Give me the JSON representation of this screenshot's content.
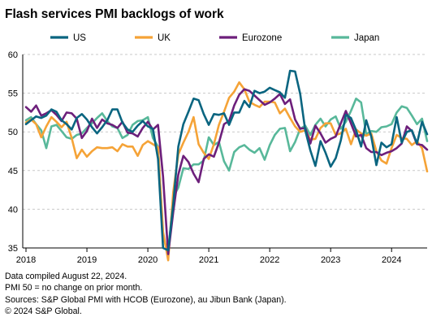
{
  "title": "Flash services PMI backlogs of work",
  "footnotes": [
    "Data compiled August 22, 2024.",
    "PMI 50 = no change on prior month.",
    "Sources: S&P Global PMI with HCOB (Eurozone),  au Jibun Bank (Japan).",
    "© 2024 S&P Global."
  ],
  "chart_data": {
    "type": "line",
    "title": "Flash services PMI backlogs of work",
    "xlabel": "",
    "ylabel": "",
    "x_start": "2018-01",
    "x_end": "2024-08",
    "frequency": "monthly",
    "xticks": [
      "2018",
      "2019",
      "2020",
      "2021",
      "2022",
      "2023",
      "2024"
    ],
    "ylim": [
      35,
      60
    ],
    "yticks": [
      35,
      40,
      45,
      50,
      55,
      60
    ],
    "grid": "horizontal dashed",
    "legend_position": "top",
    "series": [
      {
        "name": "US",
        "color": "#0a6580",
        "values": [
          51.0,
          51.5,
          52.0,
          51.8,
          52.1,
          52.9,
          52.6,
          51.5,
          51.0,
          50.3,
          51.8,
          52.3,
          51.6,
          50.6,
          49.8,
          50.6,
          51.5,
          52.9,
          52.9,
          51.2,
          50.3,
          50.0,
          50.8,
          51.4,
          50.7,
          50.4,
          46.5,
          35.0,
          34.7,
          40.6,
          48.1,
          51.0,
          52.6,
          54.3,
          54.1,
          52.3,
          50.9,
          52.3,
          52.2,
          52.4,
          50.9,
          52.5,
          52.5,
          54.0,
          53.2,
          55.3,
          55.0,
          55.2,
          55.7,
          55.4,
          55.1,
          54.4,
          57.9,
          57.8,
          54.9,
          50.2,
          47.6,
          45.6,
          48.8,
          47.3,
          45.5,
          46.6,
          48.9,
          52.2,
          51.8,
          50.2,
          48.1,
          51.5,
          49.4,
          45.7,
          48.6,
          48.0,
          48.4,
          51.9,
          48.6,
          50.0,
          50.2,
          48.5,
          51.3,
          49.7
        ],
        "label_anchor_index": 5
      },
      {
        "name": "UK",
        "color": "#f5a337",
        "values": [
          51.2,
          51.6,
          51.0,
          49.3,
          50.7,
          51.9,
          51.3,
          50.6,
          51.3,
          49.2,
          46.6,
          47.7,
          46.8,
          47.5,
          48.0,
          47.9,
          47.9,
          48.0,
          47.5,
          48.4,
          48.1,
          48.1,
          46.9,
          48.3,
          48.8,
          48.4,
          48.0,
          37.1,
          33.4,
          42.2,
          47.1,
          48.6,
          50.0,
          51.9,
          48.4,
          47.3,
          46.5,
          48.4,
          50.9,
          52.6,
          54.4,
          55.2,
          56.4,
          55.5,
          53.9,
          53.5,
          53.2,
          53.9,
          53.9,
          53.8,
          52.4,
          53.0,
          51.8,
          50.7,
          50.0,
          50.2,
          49.0,
          49.1,
          50.5,
          51.1,
          51.1,
          49.6,
          49.8,
          50.4,
          48.4,
          50.3,
          49.8,
          49.5,
          49.8,
          47.5,
          46.3,
          45.9,
          47.9,
          49.6,
          49.2,
          49.1,
          48.3,
          48.8,
          47.9,
          44.9
        ],
        "label_anchor_index": 35
      },
      {
        "name": "Eurozone",
        "color": "#6d1f7b",
        "values": [
          53.2,
          52.6,
          53.4,
          52.1,
          52.4,
          52.8,
          52.2,
          51.4,
          52.5,
          52.4,
          51.7,
          49.2,
          50.1,
          51.7,
          50.5,
          51.6,
          51.1,
          50.9,
          50.5,
          51.3,
          49.9,
          49.8,
          49.4,
          50.5,
          51.3,
          50.3,
          50.9,
          44.2,
          34.2,
          39.6,
          44.5,
          46.9,
          46.1,
          44.6,
          43.5,
          46.5,
          47.1,
          46.8,
          48.6,
          51.0,
          51.4,
          53.4,
          54.8,
          55.5,
          55.3,
          54.7,
          54.1,
          53.5,
          53.8,
          54.3,
          54.9,
          53.6,
          54.2,
          51.6,
          50.4,
          50.5,
          48.5,
          50.8,
          49.8,
          48.6,
          49.1,
          49.4,
          51.1,
          52.7,
          51.1,
          49.4,
          49.6,
          47.9,
          47.4,
          47.4,
          47.0,
          47.3,
          47.5,
          47.9,
          48.5,
          50.7,
          50.1,
          48.4,
          48.3,
          47.7
        ],
        "label_anchor_index": 62
      },
      {
        "name": "Japan",
        "color": "#58b89a",
        "values": [
          51.5,
          51.9,
          51.0,
          50.2,
          47.9,
          50.7,
          50.9,
          50.1,
          49.3,
          49.1,
          49.6,
          49.8,
          50.5,
          51.1,
          51.8,
          52.4,
          51.4,
          50.7,
          50.5,
          49.2,
          49.6,
          50.9,
          51.4,
          51.5,
          51.9,
          49.2,
          48.1,
          36.6,
          34.1,
          41.6,
          42.8,
          45.3,
          45.2,
          45.8,
          45.8,
          46.3,
          49.3,
          48.3,
          48.7,
          46.2,
          45.0,
          47.4,
          48.0,
          48.3,
          47.7,
          47.3,
          47.9,
          46.4,
          48.3,
          49.6,
          50.4,
          50.5,
          47.5,
          48.7,
          50.4,
          50.8,
          49.6,
          50.9,
          51.7,
          50.7,
          51.6,
          52.0,
          50.4,
          51.3,
          52.7,
          54.3,
          53.8,
          49.7,
          50.1,
          50.0,
          50.6,
          50.7,
          51.0,
          52.5,
          53.3,
          53.1,
          52.1,
          51.0,
          51.7,
          48.8
        ],
        "label_anchor_index": 60
      }
    ]
  }
}
